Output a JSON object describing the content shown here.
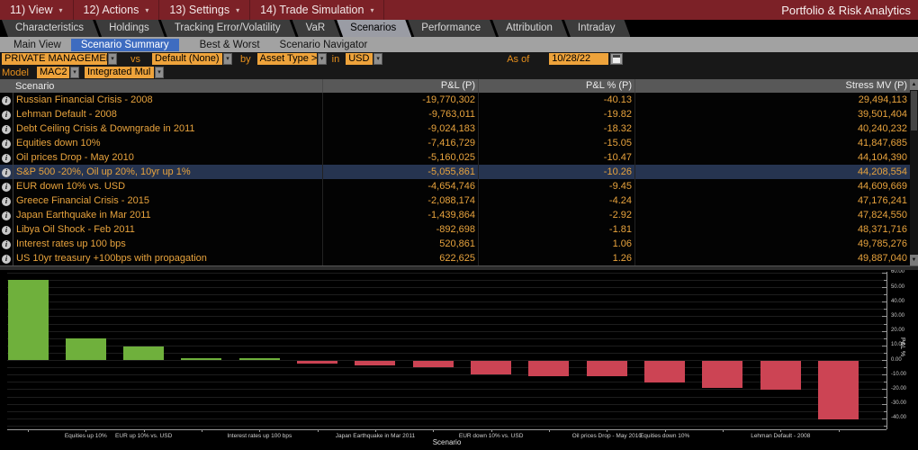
{
  "menu_bar": {
    "items": [
      {
        "label": "11) View"
      },
      {
        "label": "12) Actions"
      },
      {
        "label": "13) Settings"
      },
      {
        "label": "14) Trade Simulation"
      }
    ],
    "app_title": "Portfolio & Risk Analytics"
  },
  "tabs": {
    "items": [
      "Characteristics",
      "Holdings",
      "Tracking Error/Volatility",
      "VaR",
      "Scenarios",
      "Performance",
      "Attribution",
      "Intraday"
    ],
    "selected": "Scenarios"
  },
  "subtabs": {
    "items": [
      "Main View",
      "Scenario Summary",
      "Best & Worst",
      "Scenario Navigator"
    ],
    "selected": "Scenario Summary"
  },
  "filters": {
    "portfolio": "PRIVATE MANAGEMENT (",
    "vs_label": "vs",
    "benchmark": "Default (None)",
    "by_label": "by",
    "grouping": "Asset Type >",
    "in_label": "in",
    "currency": "USD",
    "asof_label": "As of",
    "asof_date": "10/28/22",
    "model_label": "Model",
    "model": "MAC2",
    "model_type": "Integrated Mul"
  },
  "icons": {
    "dropdown_caret": "▾",
    "scroll_up": "▲",
    "scroll_down": "▼",
    "info": "i"
  },
  "table": {
    "columns": [
      "Scenario",
      "P&L (P)",
      "P&L % (P)",
      "Stress MV (P)"
    ],
    "selected_row": 5,
    "rows": [
      {
        "scenario": "Russian Financial Crisis - 2008",
        "pnl": "-19,770,302",
        "pnl_pct": "-40.13",
        "stress_mv": "29,494,113"
      },
      {
        "scenario": "Lehman Default - 2008",
        "pnl": "-9,763,011",
        "pnl_pct": "-19.82",
        "stress_mv": "39,501,404"
      },
      {
        "scenario": "Debt Ceiling Crisis & Downgrade in 2011",
        "pnl": "-9,024,183",
        "pnl_pct": "-18.32",
        "stress_mv": "40,240,232"
      },
      {
        "scenario": "Equities down 10%",
        "pnl": "-7,416,729",
        "pnl_pct": "-15.05",
        "stress_mv": "41,847,685"
      },
      {
        "scenario": "Oil prices Drop - May 2010",
        "pnl": "-5,160,025",
        "pnl_pct": "-10.47",
        "stress_mv": "44,104,390"
      },
      {
        "scenario": "S&P 500 -20%, Oil up 20%, 10yr up 1%",
        "pnl": "-5,055,861",
        "pnl_pct": "-10.26",
        "stress_mv": "44,208,554"
      },
      {
        "scenario": "EUR down 10% vs. USD",
        "pnl": "-4,654,746",
        "pnl_pct": "-9.45",
        "stress_mv": "44,609,669"
      },
      {
        "scenario": "Greece Financial Crisis - 2015",
        "pnl": "-2,088,174",
        "pnl_pct": "-4.24",
        "stress_mv": "47,176,241"
      },
      {
        "scenario": "Japan Earthquake in Mar 2011",
        "pnl": "-1,439,864",
        "pnl_pct": "-2.92",
        "stress_mv": "47,824,550"
      },
      {
        "scenario": "Libya Oil Shock - Feb 2011",
        "pnl": "-892,698",
        "pnl_pct": "-1.81",
        "stress_mv": "48,371,716"
      },
      {
        "scenario": "Interest rates up 100 bps",
        "pnl": "520,861",
        "pnl_pct": "1.06",
        "stress_mv": "49,785,276"
      },
      {
        "scenario": "US 10yr treasury +100bps with propagation",
        "pnl": "622,625",
        "pnl_pct": "1.26",
        "stress_mv": "49,887,040"
      }
    ]
  },
  "chart_data": {
    "type": "bar",
    "title": "",
    "xlabel": "Scenario",
    "ylabel": "P&L %",
    "ylim": [
      -47.5,
      60.5
    ],
    "y_ticks": [
      60,
      50,
      40,
      30,
      20,
      10,
      0,
      -10,
      -20,
      -30,
      -40
    ],
    "grid": "horizontal, every 5 units",
    "legend": "none",
    "positive_color": "#6fb03c",
    "negative_color": "#cc4454",
    "bars": [
      {
        "label": "",
        "value": 55.0
      },
      {
        "label": "Equities up 10%",
        "value": 14.8
      },
      {
        "label": "EUR up 10% vs. USD",
        "value": 9.3
      },
      {
        "label": "",
        "value": 1.26
      },
      {
        "label": "Interest rates up 100 bps",
        "value": 1.06
      },
      {
        "label": "",
        "value": -1.81
      },
      {
        "label": "Japan Earthquake in Mar 2011",
        "value": -2.92
      },
      {
        "label": "",
        "value": -4.24
      },
      {
        "label": "EUR down 10% vs. USD",
        "value": -9.45
      },
      {
        "label": "",
        "value": -10.26
      },
      {
        "label": "Oil prices Drop - May 2010",
        "value": -10.47
      },
      {
        "label": "Equities down 10%",
        "value": -15.05
      },
      {
        "label": "",
        "value": -18.32
      },
      {
        "label": "Lehman Default - 2008",
        "value": -19.82
      },
      {
        "label": "",
        "value": -40.13
      }
    ]
  }
}
